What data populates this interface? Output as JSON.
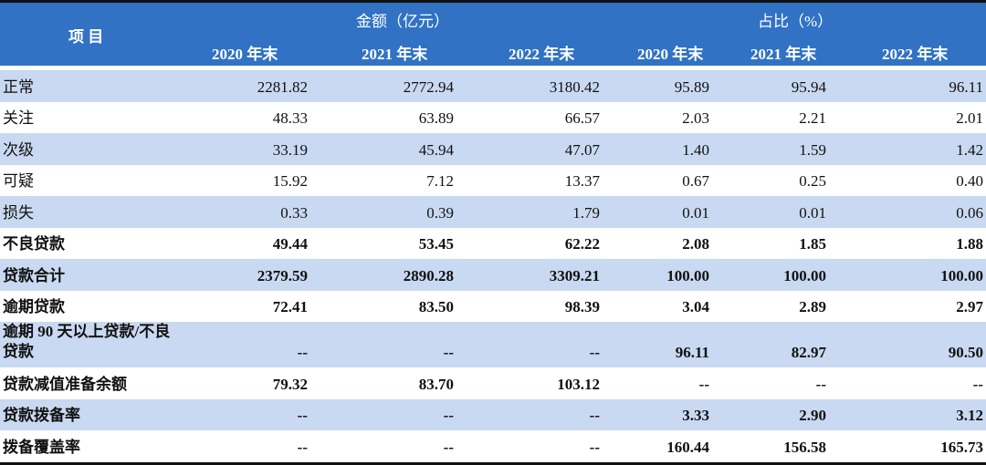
{
  "header": {
    "item_label": "项  目",
    "amount_group": "金额（亿元）",
    "ratio_group": "占比（%）",
    "amount_years": [
      "2020 年末",
      "2021 年末",
      "2022 年末"
    ],
    "ratio_years": [
      "2020 年末",
      "2021 年末",
      "2022 年末"
    ]
  },
  "colors": {
    "header_bg": "#3172c4",
    "stripe_bg": "#c9d9f1"
  },
  "rows": [
    {
      "label": "正常",
      "bold": false,
      "values": [
        "2281.82",
        "2772.94",
        "3180.42",
        "95.89",
        "95.94",
        "96.11"
      ]
    },
    {
      "label": "关注",
      "bold": false,
      "values": [
        "48.33",
        "63.89",
        "66.57",
        "2.03",
        "2.21",
        "2.01"
      ]
    },
    {
      "label": "次级",
      "bold": false,
      "values": [
        "33.19",
        "45.94",
        "47.07",
        "1.40",
        "1.59",
        "1.42"
      ]
    },
    {
      "label": "可疑",
      "bold": false,
      "values": [
        "15.92",
        "7.12",
        "13.37",
        "0.67",
        "0.25",
        "0.40"
      ]
    },
    {
      "label": "损失",
      "bold": false,
      "values": [
        "0.33",
        "0.39",
        "1.79",
        "0.01",
        "0.01",
        "0.06"
      ]
    },
    {
      "label": "不良贷款",
      "bold": true,
      "values": [
        "49.44",
        "53.45",
        "62.22",
        "2.08",
        "1.85",
        "1.88"
      ]
    },
    {
      "label": "贷款合计",
      "bold": true,
      "values": [
        "2379.59",
        "2890.28",
        "3309.21",
        "100.00",
        "100.00",
        "100.00"
      ]
    },
    {
      "label": "逾期贷款",
      "bold": true,
      "values": [
        "72.41",
        "83.50",
        "98.39",
        "3.04",
        "2.89",
        "2.97"
      ]
    },
    {
      "label": "逾期 90 天以上贷款/不良贷款",
      "bold": true,
      "values": [
        "--",
        "--",
        "--",
        "96.11",
        "82.97",
        "90.50"
      ]
    },
    {
      "label": "贷款减值准备余额",
      "bold": true,
      "values": [
        "79.32",
        "83.70",
        "103.12",
        "--",
        "--",
        "--"
      ]
    },
    {
      "label": "贷款拨备率",
      "bold": true,
      "values": [
        "--",
        "--",
        "--",
        "3.33",
        "2.90",
        "3.12"
      ]
    },
    {
      "label": "拨备覆盖率",
      "bold": true,
      "values": [
        "--",
        "--",
        "--",
        "160.44",
        "156.58",
        "165.73"
      ]
    }
  ]
}
